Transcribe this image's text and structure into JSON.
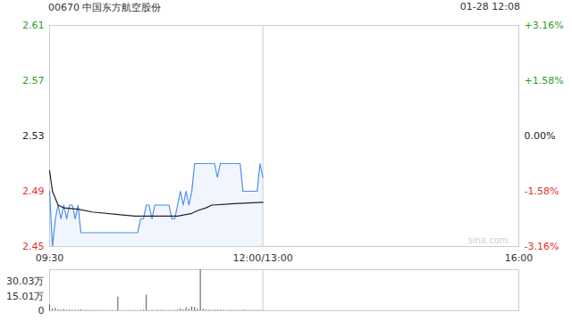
{
  "chart_data": {
    "type": "line",
    "title": "00670 中国东方航空股份",
    "subtitle": "01-28 12:08",
    "annotations": [
      "sina.com"
    ],
    "x": [
      0,
      2,
      4,
      6,
      8,
      10,
      12,
      14,
      16,
      18,
      20,
      22,
      24,
      26,
      28,
      30,
      32,
      34,
      36,
      38,
      40,
      42,
      44,
      46,
      48,
      50,
      52,
      54,
      56,
      58,
      60,
      62,
      64,
      66,
      68,
      70,
      72,
      74,
      76,
      78,
      80,
      82,
      84,
      86,
      88,
      90,
      92,
      94,
      96,
      98,
      100,
      102,
      104,
      106,
      108,
      110,
      112,
      114,
      116,
      118,
      120,
      122,
      124,
      126,
      128,
      130,
      132,
      134,
      136,
      138,
      140,
      142,
      144,
      146,
      148,
      150
    ],
    "xlim": [
      0,
      330
    ],
    "xticks": [
      {
        "value": 0,
        "label": "09:30"
      },
      {
        "value": 150,
        "label": "12:00/13:00"
      },
      {
        "value": 330,
        "label": "16:00"
      }
    ],
    "ylim": [
      2.45,
      2.61
    ],
    "yticks": [
      2.45,
      2.49,
      2.53,
      2.57,
      2.61
    ],
    "y2lim": [
      -3.16,
      3.16
    ],
    "y2ticks": [
      {
        "value": -3.16,
        "label": "-3.16%"
      },
      {
        "value": -1.58,
        "label": "-1.58%"
      },
      {
        "value": 0,
        "label": "0.00%"
      },
      {
        "value": 1.58,
        "label": "+1.58%"
      },
      {
        "value": 3.16,
        "label": "+3.16%"
      }
    ],
    "grid": "x",
    "series": [
      {
        "color": "#4a8ef0",
        "values": [
          2.49,
          2.45,
          2.47,
          2.48,
          2.47,
          2.48,
          2.47,
          2.48,
          2.48,
          2.47,
          2.48,
          2.46,
          2.46,
          2.46,
          2.46,
          2.46,
          2.46,
          2.46,
          2.46,
          2.46,
          2.46,
          2.46,
          2.46,
          2.46,
          2.46,
          2.46,
          2.46,
          2.46,
          2.46,
          2.46,
          2.46,
          2.46,
          2.47,
          2.47,
          2.48,
          2.48,
          2.47,
          2.48,
          2.48,
          2.48,
          2.48,
          2.48,
          2.48,
          2.47,
          2.47,
          2.48,
          2.49,
          2.48,
          2.49,
          2.48,
          2.49,
          2.51,
          2.51,
          2.51,
          2.51,
          2.51,
          2.51,
          2.51,
          2.51,
          2.5,
          2.51,
          2.51,
          2.51,
          2.51,
          2.51,
          2.51,
          2.51,
          2.51,
          2.49,
          2.49,
          2.49,
          2.49,
          2.49,
          2.49,
          2.51,
          2.5
        ]
      },
      {
        "color": "#222222",
        "x": [
          0,
          2,
          4,
          6,
          10,
          20,
          30,
          50,
          60,
          90,
          100,
          104,
          110,
          114,
          130,
          150
        ],
        "values": [
          2.505,
          2.49,
          2.485,
          2.48,
          2.478,
          2.477,
          2.475,
          2.473,
          2.472,
          2.472,
          2.474,
          2.476,
          2.478,
          2.48,
          2.481,
          2.482
        ]
      }
    ],
    "volume": {
      "color": "#555555",
      "values": [
        60000,
        20000,
        25000,
        10000,
        8000,
        12000,
        6000,
        8000,
        5000,
        7000,
        6000,
        9000,
        4000,
        5000,
        3000,
        4000,
        3000,
        5000,
        2000,
        3000,
        2000,
        4000,
        3000,
        2000,
        140000,
        3000,
        2000,
        3000,
        2000,
        2000,
        4000,
        3000,
        5000,
        6000,
        160000,
        5000,
        4000,
        3000,
        6000,
        5000,
        4000,
        3000,
        5000,
        4000,
        6000,
        8000,
        20000,
        10000,
        30000,
        15000,
        40000,
        35000,
        20000,
        420000,
        15000,
        8000,
        6000,
        5000,
        7000,
        9000,
        6000,
        5000,
        4000,
        6000,
        5000,
        4000,
        5000,
        3000,
        8000,
        6000,
        4000,
        5000,
        3000,
        4000,
        6000,
        3000
      ],
      "ylim": [
        0,
        420000
      ],
      "yticks": [
        0,
        {
          "value": 150100,
          "label": "15.01万"
        },
        {
          "value": 300300,
          "label": "30.03万"
        }
      ]
    }
  }
}
